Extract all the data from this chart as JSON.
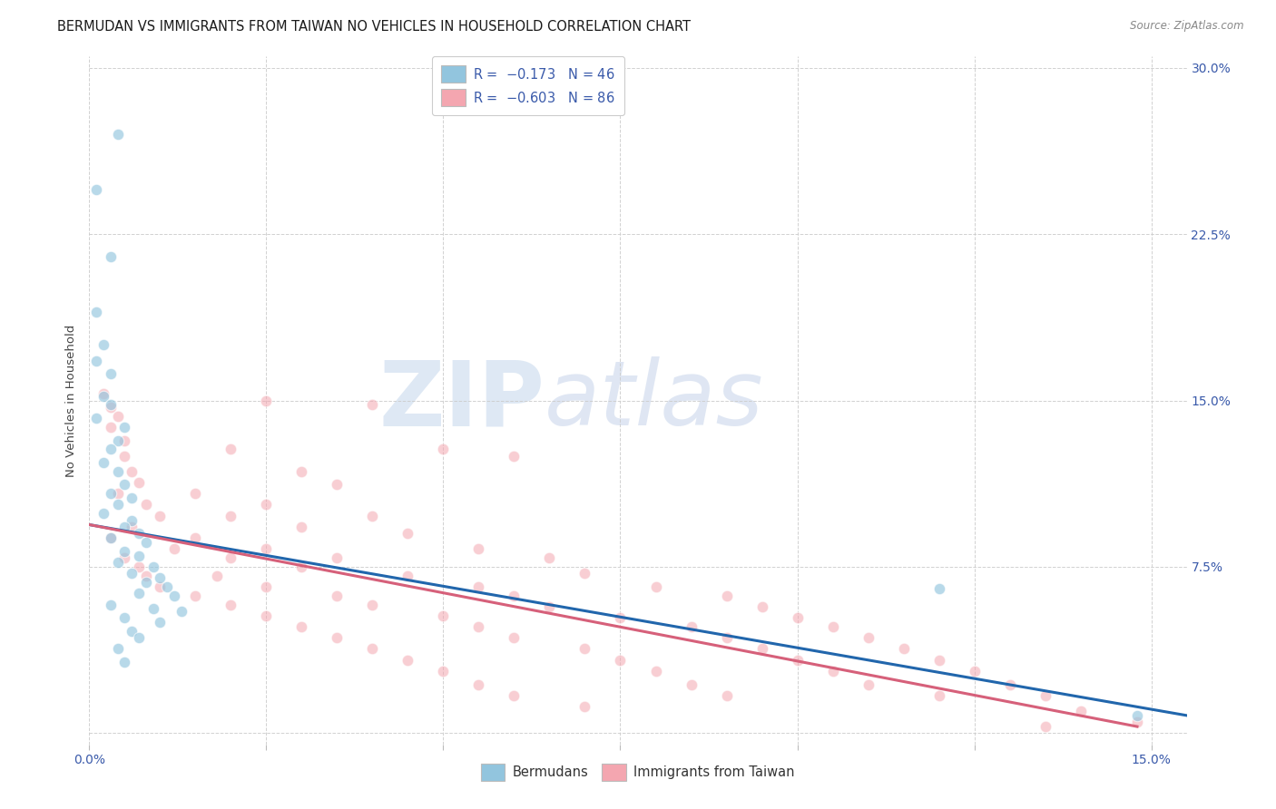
{
  "title": "BERMUDAN VS IMMIGRANTS FROM TAIWAN NO VEHICLES IN HOUSEHOLD CORRELATION CHART",
  "source": "Source: ZipAtlas.com",
  "ylabel": "No Vehicles in Household",
  "xlim": [
    0.0,
    0.155
  ],
  "ylim": [
    -0.005,
    0.305
  ],
  "ytick_values": [
    0.0,
    0.075,
    0.15,
    0.225,
    0.3
  ],
  "xtick_values": [
    0.0,
    0.025,
    0.05,
    0.075,
    0.1,
    0.125,
    0.15
  ],
  "tick_label_color": "#3a5aaa",
  "blue_color": "#92c5de",
  "pink_color": "#f4a6b0",
  "blue_line_color": "#2166ac",
  "pink_line_color": "#d6607a",
  "watermark_zip": "ZIP",
  "watermark_atlas": "atlas",
  "blue_scatter": [
    [
      0.004,
      0.27
    ],
    [
      0.001,
      0.245
    ],
    [
      0.003,
      0.215
    ],
    [
      0.001,
      0.19
    ],
    [
      0.002,
      0.175
    ],
    [
      0.001,
      0.168
    ],
    [
      0.003,
      0.162
    ],
    [
      0.002,
      0.152
    ],
    [
      0.003,
      0.148
    ],
    [
      0.001,
      0.142
    ],
    [
      0.005,
      0.138
    ],
    [
      0.004,
      0.132
    ],
    [
      0.003,
      0.128
    ],
    [
      0.002,
      0.122
    ],
    [
      0.004,
      0.118
    ],
    [
      0.005,
      0.112
    ],
    [
      0.003,
      0.108
    ],
    [
      0.006,
      0.106
    ],
    [
      0.004,
      0.103
    ],
    [
      0.002,
      0.099
    ],
    [
      0.006,
      0.096
    ],
    [
      0.005,
      0.093
    ],
    [
      0.007,
      0.09
    ],
    [
      0.003,
      0.088
    ],
    [
      0.008,
      0.086
    ],
    [
      0.005,
      0.082
    ],
    [
      0.007,
      0.08
    ],
    [
      0.004,
      0.077
    ],
    [
      0.009,
      0.075
    ],
    [
      0.006,
      0.072
    ],
    [
      0.01,
      0.07
    ],
    [
      0.008,
      0.068
    ],
    [
      0.011,
      0.066
    ],
    [
      0.007,
      0.063
    ],
    [
      0.012,
      0.062
    ],
    [
      0.003,
      0.058
    ],
    [
      0.009,
      0.056
    ],
    [
      0.013,
      0.055
    ],
    [
      0.005,
      0.052
    ],
    [
      0.01,
      0.05
    ],
    [
      0.006,
      0.046
    ],
    [
      0.007,
      0.043
    ],
    [
      0.004,
      0.038
    ],
    [
      0.005,
      0.032
    ],
    [
      0.12,
      0.065
    ],
    [
      0.148,
      0.008
    ]
  ],
  "pink_scatter": [
    [
      0.002,
      0.153
    ],
    [
      0.003,
      0.147
    ],
    [
      0.004,
      0.143
    ],
    [
      0.003,
      0.138
    ],
    [
      0.005,
      0.132
    ],
    [
      0.025,
      0.15
    ],
    [
      0.04,
      0.148
    ],
    [
      0.005,
      0.125
    ],
    [
      0.02,
      0.128
    ],
    [
      0.05,
      0.128
    ],
    [
      0.006,
      0.118
    ],
    [
      0.03,
      0.118
    ],
    [
      0.007,
      0.113
    ],
    [
      0.06,
      0.125
    ],
    [
      0.004,
      0.108
    ],
    [
      0.015,
      0.108
    ],
    [
      0.035,
      0.112
    ],
    [
      0.008,
      0.103
    ],
    [
      0.025,
      0.103
    ],
    [
      0.01,
      0.098
    ],
    [
      0.02,
      0.098
    ],
    [
      0.04,
      0.098
    ],
    [
      0.006,
      0.093
    ],
    [
      0.03,
      0.093
    ],
    [
      0.003,
      0.088
    ],
    [
      0.015,
      0.088
    ],
    [
      0.045,
      0.09
    ],
    [
      0.012,
      0.083
    ],
    [
      0.025,
      0.083
    ],
    [
      0.055,
      0.083
    ],
    [
      0.005,
      0.079
    ],
    [
      0.02,
      0.079
    ],
    [
      0.035,
      0.079
    ],
    [
      0.007,
      0.075
    ],
    [
      0.03,
      0.075
    ],
    [
      0.065,
      0.079
    ],
    [
      0.008,
      0.071
    ],
    [
      0.018,
      0.071
    ],
    [
      0.045,
      0.071
    ],
    [
      0.07,
      0.072
    ],
    [
      0.01,
      0.066
    ],
    [
      0.025,
      0.066
    ],
    [
      0.055,
      0.066
    ],
    [
      0.08,
      0.066
    ],
    [
      0.015,
      0.062
    ],
    [
      0.035,
      0.062
    ],
    [
      0.06,
      0.062
    ],
    [
      0.09,
      0.062
    ],
    [
      0.02,
      0.058
    ],
    [
      0.04,
      0.058
    ],
    [
      0.065,
      0.057
    ],
    [
      0.095,
      0.057
    ],
    [
      0.025,
      0.053
    ],
    [
      0.05,
      0.053
    ],
    [
      0.075,
      0.052
    ],
    [
      0.1,
      0.052
    ],
    [
      0.03,
      0.048
    ],
    [
      0.055,
      0.048
    ],
    [
      0.085,
      0.048
    ],
    [
      0.105,
      0.048
    ],
    [
      0.035,
      0.043
    ],
    [
      0.06,
      0.043
    ],
    [
      0.09,
      0.043
    ],
    [
      0.11,
      0.043
    ],
    [
      0.04,
      0.038
    ],
    [
      0.07,
      0.038
    ],
    [
      0.095,
      0.038
    ],
    [
      0.115,
      0.038
    ],
    [
      0.045,
      0.033
    ],
    [
      0.075,
      0.033
    ],
    [
      0.1,
      0.033
    ],
    [
      0.12,
      0.033
    ],
    [
      0.05,
      0.028
    ],
    [
      0.08,
      0.028
    ],
    [
      0.105,
      0.028
    ],
    [
      0.125,
      0.028
    ],
    [
      0.055,
      0.022
    ],
    [
      0.085,
      0.022
    ],
    [
      0.11,
      0.022
    ],
    [
      0.13,
      0.022
    ],
    [
      0.06,
      0.017
    ],
    [
      0.09,
      0.017
    ],
    [
      0.12,
      0.017
    ],
    [
      0.135,
      0.017
    ],
    [
      0.07,
      0.012
    ],
    [
      0.14,
      0.01
    ],
    [
      0.148,
      0.005
    ],
    [
      0.135,
      0.003
    ]
  ],
  "blue_trendline_x": [
    0.0,
    0.155
  ],
  "blue_trendline_y": [
    0.094,
    0.008
  ],
  "pink_trendline_x": [
    0.0,
    0.148
  ],
  "pink_trendline_y": [
    0.094,
    0.003
  ]
}
